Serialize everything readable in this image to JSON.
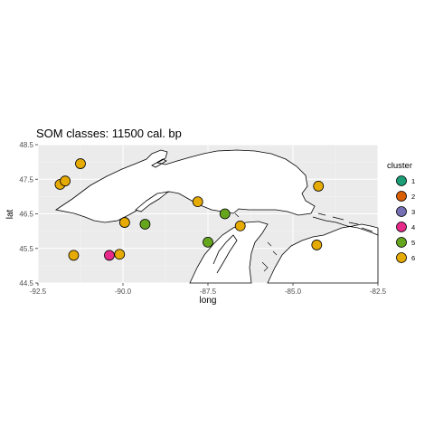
{
  "chart_data": {
    "type": "scatter",
    "title": "SOM classes: 11500 cal. bp",
    "xlabel": "long",
    "ylabel": "lat",
    "xlim": [
      -92.5,
      -82.5
    ],
    "ylim": [
      44.5,
      48.5
    ],
    "x_ticks": [
      "-92.5",
      "-90.0",
      "-87.5",
      "-85.0",
      "-82.5"
    ],
    "y_ticks": [
      "44.5",
      "45.5",
      "46.5",
      "47.5",
      "48.5"
    ],
    "background": "map of the western Great Lakes shoreline (Lake Superior and northern Lake Michigan / Lake Huron)",
    "legend": {
      "title": "cluster",
      "placement": "right",
      "entries": [
        {
          "label": "1",
          "color": "#1b9e77"
        },
        {
          "label": "2",
          "color": "#d95f02"
        },
        {
          "label": "3",
          "color": "#7570b3"
        },
        {
          "label": "4",
          "color": "#e7298a"
        },
        {
          "label": "5",
          "color": "#66a61e"
        },
        {
          "label": "6",
          "color": "#e6ab02"
        }
      ]
    },
    "points": [
      {
        "long": -91.25,
        "lat": 47.95,
        "cluster": 6
      },
      {
        "long": -91.85,
        "lat": 47.35,
        "cluster": 6
      },
      {
        "long": -91.7,
        "lat": 47.45,
        "cluster": 6
      },
      {
        "long": -87.8,
        "lat": 46.85,
        "cluster": 6
      },
      {
        "long": -84.25,
        "lat": 47.3,
        "cluster": 6
      },
      {
        "long": -89.95,
        "lat": 46.25,
        "cluster": 6
      },
      {
        "long": -86.55,
        "lat": 46.15,
        "cluster": 6
      },
      {
        "long": -91.45,
        "lat": 45.3,
        "cluster": 6
      },
      {
        "long": -90.1,
        "lat": 45.33,
        "cluster": 6
      },
      {
        "long": -84.3,
        "lat": 45.6,
        "cluster": 6
      },
      {
        "long": -89.35,
        "lat": 46.2,
        "cluster": 5
      },
      {
        "long": -87.0,
        "lat": 46.5,
        "cluster": 5
      },
      {
        "long": -87.5,
        "lat": 45.68,
        "cluster": 5
      },
      {
        "long": -90.4,
        "lat": 45.3,
        "cluster": 4
      }
    ],
    "grid": true
  }
}
